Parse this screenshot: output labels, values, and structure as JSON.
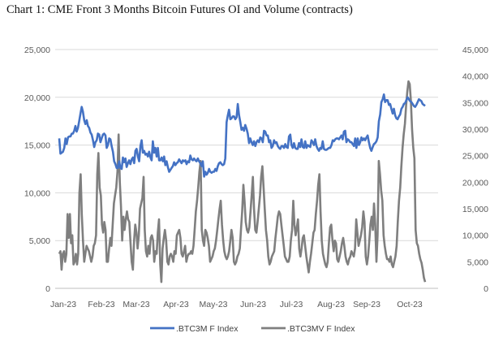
{
  "title": "Chart 1: CME Front 3 Months Bitcoin Futures OI and Volume (contracts)",
  "chart_data": {
    "type": "line",
    "title": "Chart 1: CME Front 3 Months Bitcoin Futures OI and Volume (contracts)",
    "x_tick_labels": [
      "Jan-23",
      "Feb-23",
      "Mar-23",
      "Apr-23",
      "May-23",
      "Jun-23",
      "Jul-23",
      "Aug-23",
      "Sep-23",
      "Oct-23"
    ],
    "y_left": {
      "ylim": [
        0,
        25000
      ],
      "ticks": [
        0,
        5000,
        10000,
        15000,
        20000,
        25000
      ],
      "tick_labels": [
        "0",
        "5,000",
        "10,000",
        "15,000",
        "20,000",
        "25,000"
      ]
    },
    "y_right": {
      "ylim": [
        0,
        45000
      ],
      "ticks": [
        0,
        5000,
        10000,
        15000,
        20000,
        25000,
        30000,
        35000,
        40000,
        45000
      ],
      "tick_labels": [
        "0",
        "5,000",
        "10,000",
        "15,000",
        "20,000",
        "25,000",
        "30,000",
        "35,000",
        "40,000",
        "45,000"
      ]
    },
    "grid": "horizontal",
    "legend_position": "bottom",
    "colors": {
      "oi": "#4472c4",
      "volume": "#7f7f7f",
      "grid": "#d9d9d9",
      "axis_text": "#595959"
    },
    "series": [
      {
        "name": ".BTC3M F Index",
        "axis": "left",
        "color": "#4472c4",
        "values": [
          15700,
          14100,
          14200,
          14300,
          14700,
          15700,
          15100,
          15800,
          15900,
          15900,
          16200,
          16200,
          16500,
          17000,
          16400,
          16800,
          17500,
          18300,
          19000,
          18500,
          17600,
          17200,
          17600,
          17000,
          16800,
          16300,
          16100,
          15500,
          14800,
          15300,
          15500,
          16200,
          16100,
          15300,
          15700,
          16100,
          16200,
          16000,
          14700,
          15000,
          15700,
          15600,
          14900,
          14300,
          13300,
          13000,
          12600,
          12600,
          13300,
          12600,
          12500,
          13700,
          13200,
          13600,
          12700,
          13100,
          13400,
          13000,
          13500,
          13700,
          13100,
          14400,
          14600,
          13800,
          13300,
          14900,
          15500,
          14200,
          14400,
          14000,
          14100,
          13800,
          14300,
          13700,
          13400,
          15400,
          14200,
          14700,
          13800,
          14700,
          13400,
          13400,
          13700,
          13300,
          13800,
          12900,
          13300,
          12700,
          12200,
          12400,
          12600,
          12800,
          13200,
          12900,
          13100,
          13200,
          13500,
          13300,
          13100,
          13400,
          13300,
          13400,
          13000,
          13300,
          13200,
          13900,
          13500,
          13400,
          13600,
          13400,
          13300,
          13600,
          13300,
          13100,
          12800,
          13300,
          11700,
          12200,
          11900,
          12100,
          12500,
          12200,
          12100,
          12200,
          12200,
          12500,
          12300,
          12800,
          13100,
          13200,
          13000,
          12900,
          13000,
          13600,
          17400,
          18100,
          18700,
          17700,
          17800,
          18000,
          18000,
          17700,
          17900,
          19300,
          18100,
          17400,
          16600,
          16800,
          16500,
          17100,
          16700,
          16200,
          15200,
          15700,
          15300,
          15000,
          15400,
          14900,
          15300,
          15500,
          15300,
          15800,
          15700,
          15300,
          16500,
          16400,
          16000,
          16000,
          15300,
          15500,
          14700,
          14900,
          15500,
          15200,
          15300,
          14900,
          14700,
          14600,
          14900,
          14900,
          14700,
          15100,
          14800,
          14700,
          15900,
          16100,
          15000,
          14700,
          15200,
          14700,
          14600,
          14600,
          15200,
          14800,
          15600,
          14800,
          14700,
          15400,
          14700,
          15000,
          14900,
          14800,
          15500,
          15300,
          15000,
          15600,
          14900,
          14600,
          14400,
          14700,
          14600,
          15400,
          14600,
          14500,
          14500,
          14600,
          14700,
          14700,
          15000,
          15500,
          15400,
          15600,
          15700,
          15700,
          15600,
          15800,
          16000,
          15600,
          16400,
          16500,
          15300,
          15600,
          15500,
          15300,
          15300,
          15100,
          14900,
          15700,
          14700,
          15700,
          15000,
          15300,
          15800,
          15500,
          15700,
          15500,
          15800,
          16000,
          15300,
          14700,
          14400,
          14800,
          15100,
          15200,
          15400,
          15800,
          17500,
          18200,
          19500,
          19800,
          20300,
          19500,
          19700,
          19700,
          19200,
          19300,
          18800,
          18300,
          18800,
          18100,
          17800,
          17700,
          18000,
          18200,
          18800,
          19000,
          19300,
          19400,
          19700,
          20000,
          19800,
          19600,
          19500,
          19300,
          19100,
          19000,
          19200,
          19500,
          19800,
          19700,
          19600,
          19300,
          19200,
          19100
        ]
      },
      {
        "name": ".BTC3MV F Index",
        "axis": "right",
        "color": "#7f7f7f",
        "values": [
          6500,
          7000,
          3500,
          6500,
          7000,
          5000,
          6500,
          14000,
          9500,
          14000,
          8500,
          10000,
          4500,
          5000,
          6500,
          4500,
          6500,
          18000,
          21500,
          14000,
          9000,
          5000,
          6500,
          8000,
          7500,
          7000,
          6000,
          5000,
          6000,
          8000,
          8500,
          10000,
          21500,
          25500,
          19000,
          17500,
          12000,
          10500,
          12500,
          11000,
          5000,
          5000,
          7500,
          9500,
          8000,
          12000,
          16000,
          17500,
          19000,
          22000,
          29000,
          20000,
          15500,
          9000,
          13500,
          11000,
          13000,
          14500,
          13000,
          12500,
          8500,
          5000,
          3500,
          9000,
          12000,
          10500,
          7500,
          10000,
          15000,
          16000,
          17000,
          21000,
          11000,
          7000,
          6000,
          8000,
          6500,
          9500,
          10000,
          9000,
          5000,
          7000,
          6500,
          10500,
          13000,
          4500,
          1200,
          7500,
          9500,
          11000,
          9000,
          5000,
          4500,
          6000,
          6500,
          6000,
          5000,
          7000,
          6500,
          10000,
          10500,
          11000,
          9500,
          6500,
          6000,
          7000,
          8000,
          5000,
          6000,
          6500,
          6500,
          7000,
          6500,
          8000,
          11000,
          14500,
          16500,
          19000,
          22000,
          24000,
          11000,
          9000,
          8000,
          11000,
          10500,
          9500,
          8000,
          5000,
          5500,
          6000,
          7000,
          7500,
          9000,
          11000,
          13000,
          15000,
          16500,
          12000,
          9000,
          7000,
          6000,
          5500,
          6000,
          7000,
          9000,
          11000,
          9500,
          5000,
          4500,
          5000,
          6000,
          6500,
          7500,
          11000,
          14500,
          19500,
          16500,
          12500,
          11000,
          10500,
          11500,
          14500,
          17500,
          21000,
          15000,
          11000,
          10500,
          12500,
          15000,
          17500,
          21000,
          23000,
          19000,
          15000,
          11000,
          9000,
          6000,
          4500,
          5000,
          6000,
          6500,
          7000,
          9500,
          11500,
          13500,
          14500,
          14000,
          12000,
          10000,
          8000,
          6000,
          5500,
          5000,
          5000,
          6000,
          9000,
          11000,
          16500,
          12000,
          10000,
          11500,
          13000,
          7500,
          6000,
          7500,
          9500,
          10000,
          8000,
          6000,
          4500,
          3000,
          5000,
          6500,
          8500,
          10500,
          11000,
          14000,
          16500,
          19500,
          21500,
          14500,
          9000,
          6500,
          5500,
          4500,
          4000,
          5000,
          8500,
          11500,
          12000,
          9000,
          7000,
          9000,
          8500,
          5500,
          5000,
          6000,
          7000,
          8500,
          9500,
          8000,
          6000,
          5000,
          4500,
          5500,
          6000,
          7000,
          6500,
          6000,
          7500,
          13000,
          10500,
          8000,
          9000,
          10000,
          11500,
          14500,
          12500,
          6000,
          4500,
          6000,
          9000,
          12000,
          13500,
          11000,
          16000,
          12000,
          5000,
          10000,
          24000,
          21500,
          18500,
          16500,
          10000,
          8000,
          6500,
          5500,
          5500,
          5000,
          6000,
          4500,
          4000,
          5000,
          6000,
          8000,
          12500,
          16500,
          19000,
          23000,
          26500,
          29000,
          31000,
          34500,
          37000,
          39000,
          38500,
          35500,
          30000,
          26500,
          24500,
          11000,
          8500,
          8000,
          6500,
          5500,
          4800,
          3500,
          2000,
          1200
        ]
      }
    ]
  },
  "legend": {
    "oi_label": ".BTC3M F Index",
    "volume_label": ".BTC3MV F Index"
  }
}
